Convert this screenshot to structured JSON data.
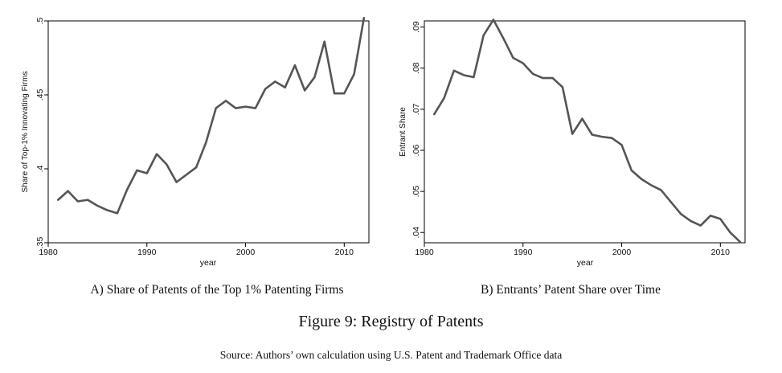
{
  "figure": {
    "title": "Figure 9: Registry of Patents",
    "source": "Source: Authors’ own calculation using U.S. Patent and Trademark Office data"
  },
  "panels": [
    {
      "label": "A)",
      "caption": "Share of Patents of the Top 1% Patenting Firms"
    },
    {
      "label": "B)",
      "caption": "Entrants’ Patent Share over Time"
    }
  ],
  "chart_data": [
    {
      "type": "line",
      "xlabel": "year",
      "ylabel": "Share of Top-1% Innovating Firms",
      "xlim": [
        1980,
        2012.5
      ],
      "ylim": [
        0.35,
        0.5
      ],
      "xticks": [
        1980,
        1990,
        2000,
        2010
      ],
      "xtick_labels": [
        "1980",
        "1990",
        "2000",
        "2010"
      ],
      "yticks": [
        0.35,
        0.4,
        0.45,
        0.5
      ],
      "ytick_labels": [
        ".35",
        ".4",
        ".45",
        ".5"
      ],
      "line_color": "#555555",
      "grid": false,
      "x": [
        1981,
        1982,
        1983,
        1984,
        1985,
        1986,
        1987,
        1988,
        1989,
        1990,
        1991,
        1992,
        1993,
        1994,
        1995,
        1996,
        1997,
        1998,
        1999,
        2000,
        2001,
        2002,
        2003,
        2004,
        2005,
        2006,
        2007,
        2008,
        2009,
        2010,
        2011,
        2012
      ],
      "y": [
        0.379,
        0.385,
        0.378,
        0.379,
        0.375,
        0.372,
        0.37,
        0.386,
        0.399,
        0.397,
        0.41,
        0.403,
        0.391,
        0.396,
        0.401,
        0.418,
        0.441,
        0.446,
        0.441,
        0.442,
        0.441,
        0.454,
        0.459,
        0.455,
        0.47,
        0.453,
        0.462,
        0.486,
        0.451,
        0.451,
        0.464,
        0.502
      ]
    },
    {
      "type": "line",
      "xlabel": "year",
      "ylabel": "Entrant Share",
      "xlim": [
        1980,
        2012.5
      ],
      "ylim": [
        0.0375,
        0.0915
      ],
      "xticks": [
        1980,
        1990,
        2000,
        2010
      ],
      "xtick_labels": [
        "1980",
        "1990",
        "2000",
        "2010"
      ],
      "yticks": [
        0.04,
        0.05,
        0.06,
        0.07,
        0.08,
        0.09
      ],
      "ytick_labels": [
        ".04",
        ".05",
        ".06",
        ".07",
        ".08",
        ".09"
      ],
      "line_color": "#555555",
      "grid": false,
      "x": [
        1981,
        1982,
        1983,
        1984,
        1985,
        1986,
        1987,
        1988,
        1989,
        1990,
        1991,
        1992,
        1993,
        1994,
        1995,
        1996,
        1997,
        1998,
        1999,
        2000,
        2001,
        2002,
        2003,
        2004,
        2005,
        2006,
        2007,
        2008,
        2009,
        2010,
        2011,
        2012
      ],
      "y": [
        0.0688,
        0.0727,
        0.0794,
        0.0783,
        0.0778,
        0.088,
        0.0918,
        0.0873,
        0.0825,
        0.0812,
        0.0786,
        0.0776,
        0.0776,
        0.0754,
        0.064,
        0.0677,
        0.0638,
        0.0633,
        0.063,
        0.0613,
        0.0551,
        0.053,
        0.0515,
        0.0503,
        0.0474,
        0.0445,
        0.0428,
        0.0417,
        0.0441,
        0.0433,
        0.04,
        0.0377
      ]
    }
  ]
}
